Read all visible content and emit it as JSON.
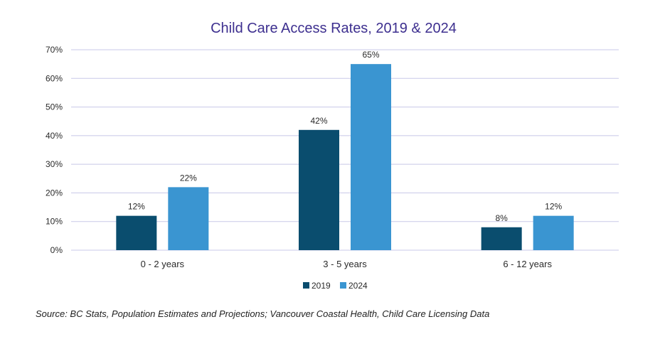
{
  "chart_data": {
    "type": "bar",
    "title": "Child Care Access Rates, 2019 & 2024",
    "categories": [
      "0 - 2 years",
      "3 - 5 years",
      "6 - 12 years"
    ],
    "series": [
      {
        "name": "2019",
        "values": [
          12,
          42,
          8
        ],
        "labels": [
          "12%",
          "42%",
          "8%"
        ],
        "color": "#0a4d6e"
      },
      {
        "name": "2024",
        "values": [
          22,
          65,
          12
        ],
        "labels": [
          "22%",
          "65%",
          "12%"
        ],
        "color": "#3a95d1"
      }
    ],
    "yticks": [
      0,
      10,
      20,
      30,
      40,
      50,
      60,
      70
    ],
    "ytick_labels": [
      "0%",
      "10%",
      "20%",
      "30%",
      "40%",
      "50%",
      "60%",
      "70%"
    ],
    "ylim": [
      0,
      70
    ],
    "xlabel": "",
    "ylabel": "",
    "grid": true,
    "legend": "bottom-center",
    "title_color": "#3d2f8f",
    "grid_color": "#c8c8e8",
    "text_color": "#2a2a2a"
  },
  "source_note": "Source: BC Stats, Population Estimates and Projections; Vancouver Coastal Health, Child Care Licensing Data"
}
